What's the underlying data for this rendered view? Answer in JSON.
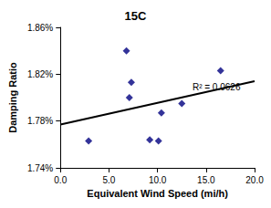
{
  "chart_data": {
    "type": "scatter",
    "title": "15C",
    "x_label": "Equivalent Wind Speed (mi/h)",
    "y_label": "Damping Ratio",
    "x": [
      2.9,
      6.8,
      7.1,
      7.3,
      9.2,
      10.1,
      10.4,
      12.5,
      16.5
    ],
    "values": [
      1.763,
      1.84,
      1.8,
      1.813,
      1.764,
      1.763,
      1.787,
      1.795,
      1.823
    ],
    "color": "#000080",
    "marker": "diamond",
    "trendline": {
      "x": [
        0,
        20
      ],
      "y": [
        1.777,
        1.814
      ],
      "color": "#000000",
      "line_style": "solid"
    },
    "annotations": [
      {
        "text": "R² = 0.0626",
        "x": 13.6,
        "y": 1.809
      }
    ],
    "xlim": [
      0,
      20
    ],
    "xticks": [
      {
        "value": 0,
        "label": "0.0"
      },
      {
        "value": 5,
        "label": "5.0"
      },
      {
        "value": 10,
        "label": "10.0"
      },
      {
        "value": 15,
        "label": "15.0"
      },
      {
        "value": 20,
        "label": "20.0"
      }
    ],
    "ylim": [
      1.74,
      1.86
    ],
    "yticks": [
      {
        "value": 1.74,
        "label": "1.74%"
      },
      {
        "value": 1.78,
        "label": "1.78%"
      },
      {
        "value": 1.82,
        "label": "1.82%"
      },
      {
        "value": 1.86,
        "label": "1.86%"
      }
    ],
    "grid": false
  }
}
